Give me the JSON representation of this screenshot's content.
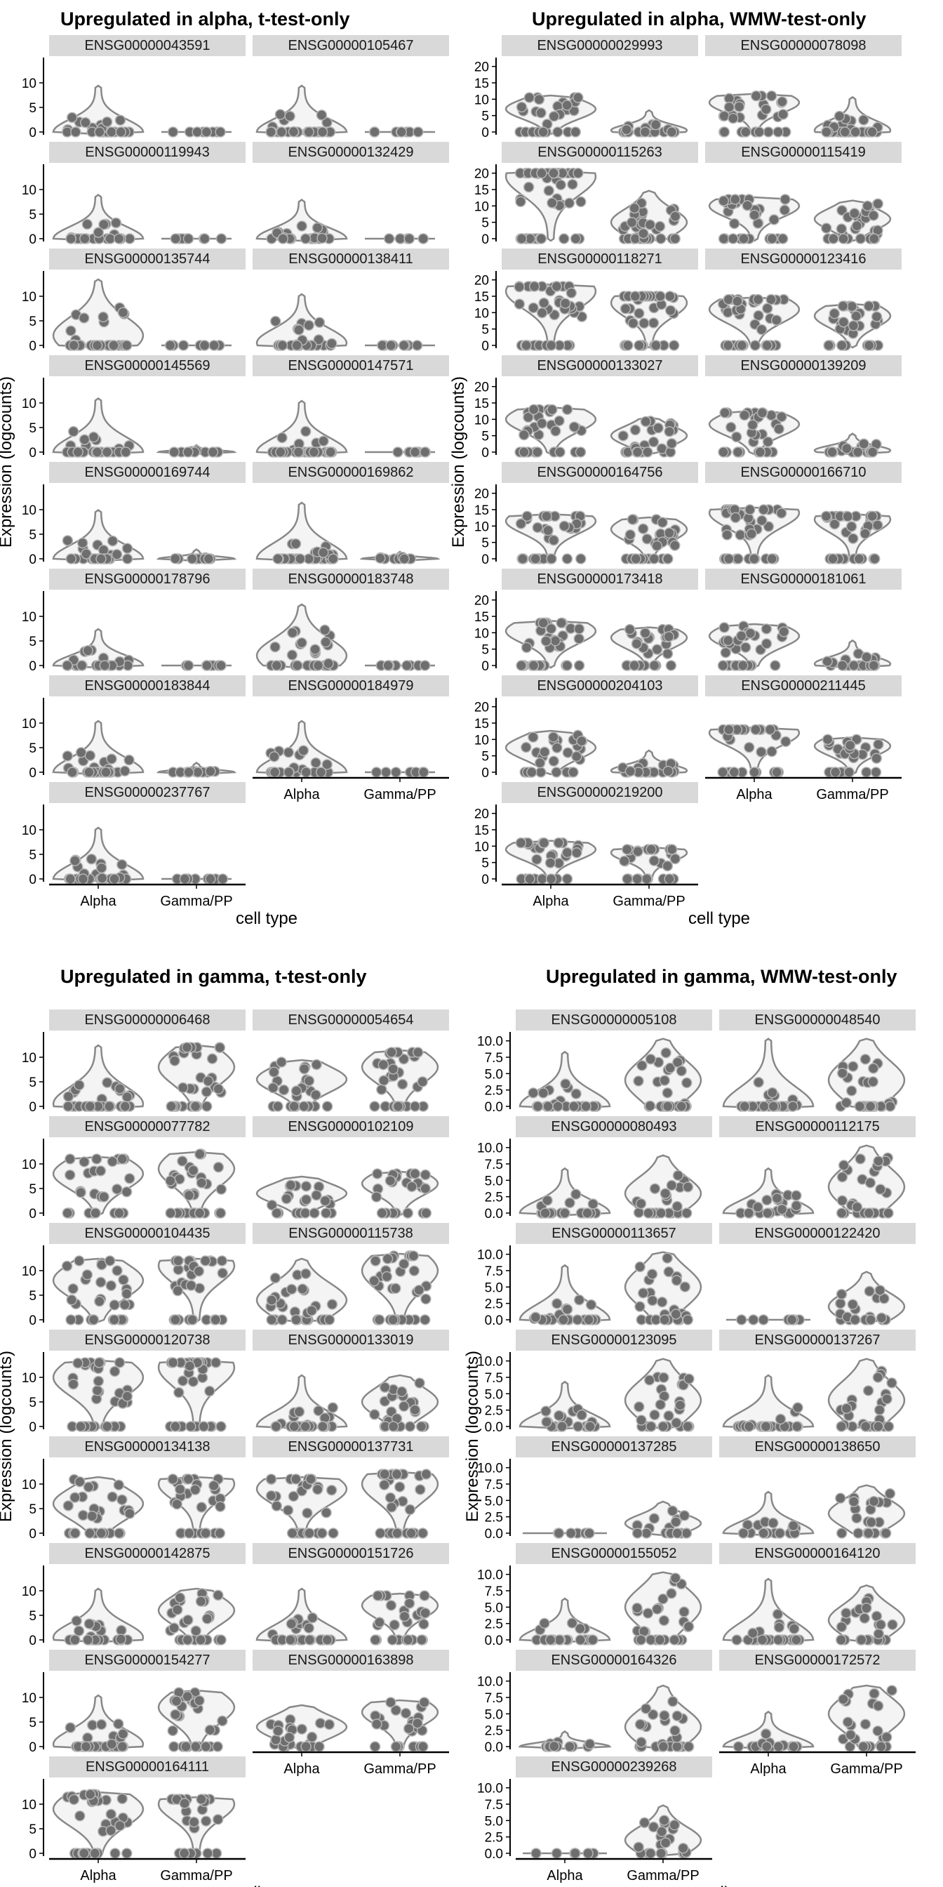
{
  "chart_data": [
    {
      "type": "violin",
      "title": "Upregulated in alpha, t-test-only",
      "xlabel": "cell type",
      "ylabel": "Expression (logcounts)",
      "categories": [
        "Alpha",
        "Gamma/PP"
      ],
      "ylim": [
        0,
        14
      ],
      "yticks": [
        0,
        5,
        10
      ],
      "grid": false,
      "ncol": 2,
      "genes": [
        {
          "name": "ENSG00000043591",
          "max": [
            9,
            0
          ],
          "median": [
            0,
            0
          ]
        },
        {
          "name": "ENSG00000105467",
          "max": [
            9,
            0
          ],
          "median": [
            0,
            0
          ]
        },
        {
          "name": "ENSG00000119943",
          "max": [
            8.5,
            0
          ],
          "median": [
            0,
            0
          ]
        },
        {
          "name": "ENSG00000132429",
          "max": [
            7.5,
            0
          ],
          "median": [
            0,
            0
          ]
        },
        {
          "name": "ENSG00000135744",
          "max": [
            13,
            0
          ],
          "median": [
            2,
            0
          ]
        },
        {
          "name": "ENSG00000138411",
          "max": [
            10,
            0
          ],
          "median": [
            0.5,
            0
          ]
        },
        {
          "name": "ENSG00000145569",
          "max": [
            10.5,
            1
          ],
          "median": [
            0,
            0
          ]
        },
        {
          "name": "ENSG00000147571",
          "max": [
            10,
            0
          ],
          "median": [
            0,
            0
          ]
        },
        {
          "name": "ENSG00000169744",
          "max": [
            9.5,
            1.5
          ],
          "median": [
            0,
            0
          ]
        },
        {
          "name": "ENSG00000169862",
          "max": [
            11,
            1
          ],
          "median": [
            0,
            0
          ]
        },
        {
          "name": "ENSG00000178796",
          "max": [
            7,
            0
          ],
          "median": [
            0,
            0
          ]
        },
        {
          "name": "ENSG00000183748",
          "max": [
            12,
            0
          ],
          "median": [
            2,
            0
          ]
        },
        {
          "name": "ENSG00000183844",
          "max": [
            10,
            1.5
          ],
          "median": [
            0,
            0
          ]
        },
        {
          "name": "ENSG00000184979",
          "max": [
            10,
            0
          ],
          "median": [
            0,
            0
          ]
        },
        {
          "name": "ENSG00000237767",
          "max": [
            10,
            0
          ],
          "median": [
            0,
            0
          ]
        }
      ]
    },
    {
      "type": "violin",
      "title": "Upregulated in alpha, WMW-test-only",
      "xlabel": "cell type",
      "ylabel": "Expression (logcounts)",
      "categories": [
        "Alpha",
        "Gamma/PP"
      ],
      "ylim": [
        0,
        21
      ],
      "yticks": [
        0,
        5,
        10,
        15,
        20
      ],
      "grid": false,
      "ncol": 2,
      "genes": [
        {
          "name": "ENSG00000029993",
          "max": [
            10.5,
            6
          ],
          "median": [
            7,
            0.5
          ]
        },
        {
          "name": "ENSG00000078098",
          "max": [
            11,
            10
          ],
          "median": [
            9,
            0.5
          ]
        },
        {
          "name": "ENSG00000115263",
          "max": [
            20,
            14
          ],
          "median": [
            19,
            5
          ]
        },
        {
          "name": "ENSG00000115419",
          "max": [
            12,
            11
          ],
          "median": [
            10,
            6
          ]
        },
        {
          "name": "ENSG00000118271",
          "max": [
            18,
            15
          ],
          "median": [
            16.5,
            13
          ]
        },
        {
          "name": "ENSG00000123416",
          "max": [
            14,
            12
          ],
          "median": [
            11,
            9
          ]
        },
        {
          "name": "ENSG00000133027",
          "max": [
            13,
            10
          ],
          "median": [
            10,
            5
          ]
        },
        {
          "name": "ENSG00000139209",
          "max": [
            12,
            5
          ],
          "median": [
            8.5,
            0.5
          ]
        },
        {
          "name": "ENSG00000164756",
          "max": [
            13,
            12
          ],
          "median": [
            11.5,
            9
          ]
        },
        {
          "name": "ENSG00000166710",
          "max": [
            15,
            13
          ],
          "median": [
            14,
            12
          ]
        },
        {
          "name": "ENSG00000173418",
          "max": [
            13,
            11
          ],
          "median": [
            10.5,
            8.5
          ]
        },
        {
          "name": "ENSG00000181061",
          "max": [
            12,
            7
          ],
          "median": [
            9,
            0.5
          ]
        },
        {
          "name": "ENSG00000204103",
          "max": [
            12,
            6
          ],
          "median": [
            7.5,
            0.5
          ]
        },
        {
          "name": "ENSG00000211445",
          "max": [
            13,
            10
          ],
          "median": [
            12,
            8
          ]
        },
        {
          "name": "ENSG00000219200",
          "max": [
            11,
            9
          ],
          "median": [
            9,
            8
          ]
        }
      ]
    },
    {
      "type": "violin",
      "title": "Upregulated in gamma, t-test-only",
      "xlabel": "cell type",
      "ylabel": "Expression (logcounts)",
      "categories": [
        "Alpha",
        "Gamma/PP"
      ],
      "ylim": [
        0,
        14
      ],
      "yticks": [
        0,
        5,
        10
      ],
      "grid": false,
      "ncol": 2,
      "genes": [
        {
          "name": "ENSG00000006468",
          "max": [
            12,
            12
          ],
          "median": [
            0.5,
            8
          ]
        },
        {
          "name": "ENSG00000054654",
          "max": [
            9,
            11
          ],
          "median": [
            5.5,
            8
          ]
        },
        {
          "name": "ENSG00000077782",
          "max": [
            11,
            12
          ],
          "median": [
            8,
            9
          ]
        },
        {
          "name": "ENSG00000102109",
          "max": [
            7,
            8
          ],
          "median": [
            4,
            6
          ]
        },
        {
          "name": "ENSG00000104435",
          "max": [
            12,
            12
          ],
          "median": [
            8,
            11
          ]
        },
        {
          "name": "ENSG00000115738",
          "max": [
            12,
            13
          ],
          "median": [
            4,
            10
          ]
        },
        {
          "name": "ENSG00000120738",
          "max": [
            13,
            13
          ],
          "median": [
            10,
            12
          ]
        },
        {
          "name": "ENSG00000133019",
          "max": [
            10,
            10
          ],
          "median": [
            0,
            5
          ]
        },
        {
          "name": "ENSG00000134138",
          "max": [
            11,
            11
          ],
          "median": [
            6,
            10
          ]
        },
        {
          "name": "ENSG00000137731",
          "max": [
            11,
            12
          ],
          "median": [
            9,
            10
          ]
        },
        {
          "name": "ENSG00000142875",
          "max": [
            10,
            10
          ],
          "median": [
            0.5,
            6
          ]
        },
        {
          "name": "ENSG00000151726",
          "max": [
            10,
            9
          ],
          "median": [
            0,
            7
          ]
        },
        {
          "name": "ENSG00000154277",
          "max": [
            10,
            11
          ],
          "median": [
            0.5,
            8
          ]
        },
        {
          "name": "ENSG00000163898",
          "max": [
            8,
            9
          ],
          "median": [
            4,
            7
          ]
        },
        {
          "name": "ENSG00000164111",
          "max": [
            12,
            11
          ],
          "median": [
            9,
            10
          ]
        }
      ]
    },
    {
      "type": "violin",
      "title": "Upregulated in gamma, WMW-test-only",
      "xlabel": "cell type",
      "ylabel": "Expression (logcounts)",
      "categories": [
        "Alpha",
        "Gamma/PP"
      ],
      "ylim": [
        0,
        10.5
      ],
      "yticks": [
        0,
        2.5,
        5,
        7.5,
        10
      ],
      "grid": false,
      "ncol": 2,
      "genes": [
        {
          "name": "ENSG00000005108",
          "max": [
            8,
            10
          ],
          "median": [
            0,
            4
          ]
        },
        {
          "name": "ENSG00000048540",
          "max": [
            10,
            10
          ],
          "median": [
            0,
            4
          ]
        },
        {
          "name": "ENSG00000080493",
          "max": [
            6.5,
            8.5
          ],
          "median": [
            0,
            3
          ]
        },
        {
          "name": "ENSG00000112175",
          "max": [
            6.5,
            10
          ],
          "median": [
            0,
            4
          ]
        },
        {
          "name": "ENSG00000113657",
          "max": [
            8,
            10
          ],
          "median": [
            0,
            5
          ]
        },
        {
          "name": "ENSG00000122420",
          "max": [
            0,
            7
          ],
          "median": [
            0,
            2
          ]
        },
        {
          "name": "ENSG00000123095",
          "max": [
            6.5,
            10
          ],
          "median": [
            0,
            4
          ]
        },
        {
          "name": "ENSG00000137267",
          "max": [
            7.5,
            10
          ],
          "median": [
            0,
            4
          ]
        },
        {
          "name": "ENSG00000137285",
          "max": [
            0,
            4.5
          ],
          "median": [
            0,
            1.5
          ]
        },
        {
          "name": "ENSG00000138650",
          "max": [
            6,
            7
          ],
          "median": [
            0,
            3
          ]
        },
        {
          "name": "ENSG00000155052",
          "max": [
            6,
            10
          ],
          "median": [
            0,
            5
          ]
        },
        {
          "name": "ENSG00000164120",
          "max": [
            9,
            8
          ],
          "median": [
            0,
            3
          ]
        },
        {
          "name": "ENSG00000164326",
          "max": [
            2,
            9
          ],
          "median": [
            0,
            3
          ]
        },
        {
          "name": "ENSG00000172572",
          "max": [
            5,
            9
          ],
          "median": [
            0,
            5
          ]
        },
        {
          "name": "ENSG00000239268",
          "max": [
            0,
            7
          ],
          "median": [
            0,
            2
          ]
        }
      ]
    }
  ]
}
